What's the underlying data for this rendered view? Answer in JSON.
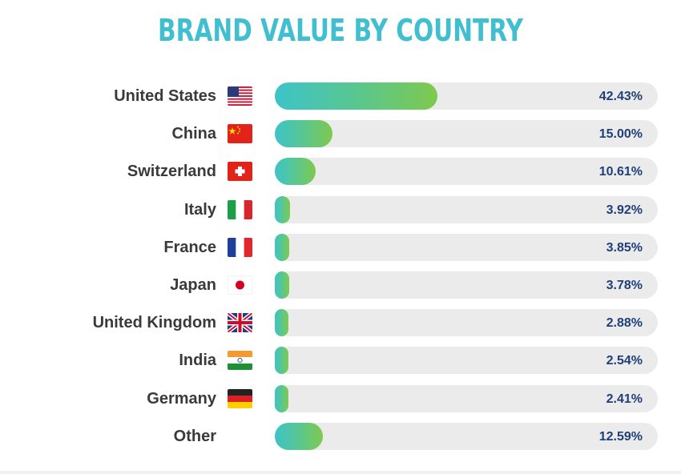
{
  "chart_data": {
    "type": "bar",
    "orientation": "horizontal",
    "title": "BRAND VALUE BY COUNTRY",
    "categories": [
      "United States",
      "China",
      "Switzerland",
      "Italy",
      "France",
      "Japan",
      "United Kingdom",
      "India",
      "Germany",
      "Other"
    ],
    "values": [
      42.43,
      15.0,
      10.61,
      3.92,
      3.85,
      3.78,
      2.88,
      2.54,
      2.41,
      12.59
    ],
    "value_labels": [
      "42.43%",
      "15.00%",
      "10.61%",
      "3.92%",
      "3.85%",
      "3.78%",
      "2.88%",
      "2.54%",
      "2.41%",
      "12.59%"
    ],
    "flags": [
      "us-flag-icon",
      "china-flag-icon",
      "switzerland-flag-icon",
      "italy-flag-icon",
      "france-flag-icon",
      "japan-flag-icon",
      "uk-flag-icon",
      "india-flag-icon",
      "germany-flag-icon",
      ""
    ],
    "xlim": [
      0,
      100
    ],
    "colors": {
      "title": "#3fbfcf",
      "bar_start": "#3dc3c9",
      "bar_end": "#7fc94e",
      "track": "#ebebeb",
      "value_text": "#1f3f7a",
      "label_text": "#3a3a3a"
    }
  }
}
